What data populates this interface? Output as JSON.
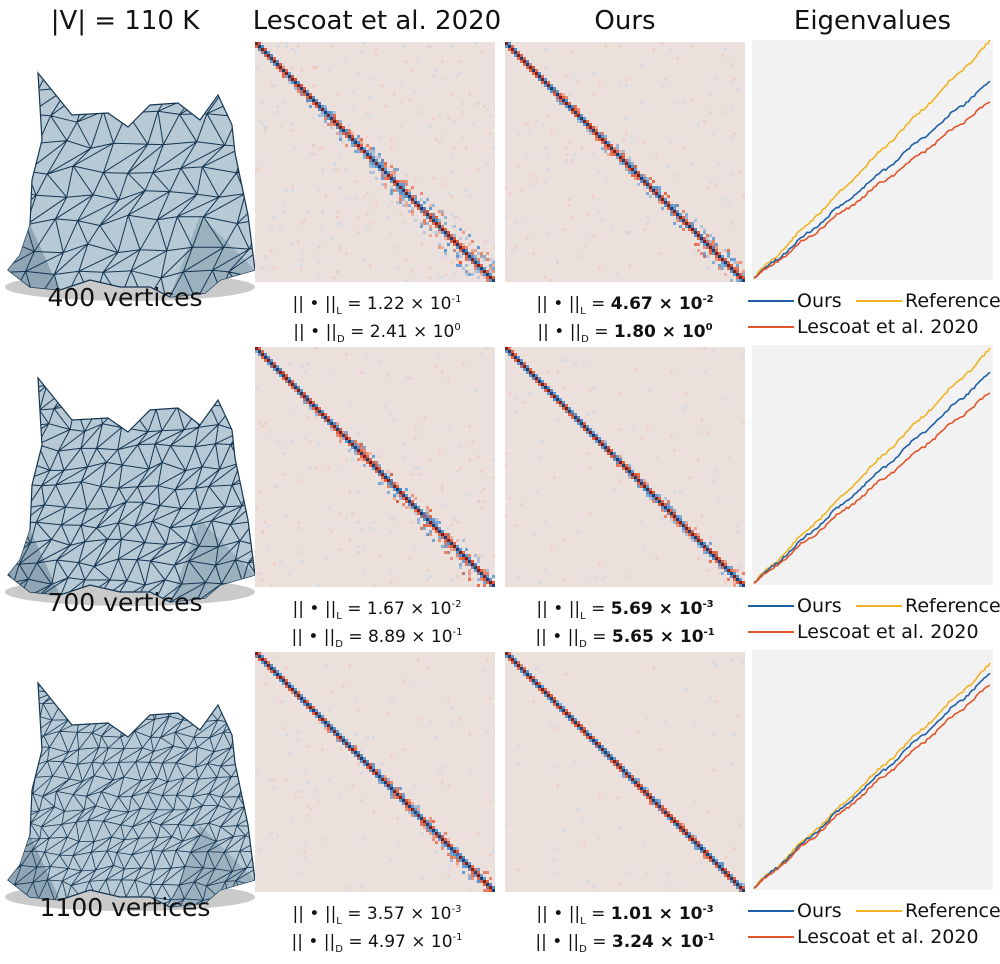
{
  "headers": {
    "col0": "|V| = 110 K",
    "col1": "Lescoat et al. 2020",
    "col2": "Ours",
    "col3": "Eigenvalues"
  },
  "colors": {
    "ours": "#1f5fa6",
    "reference": "#f0b323",
    "lescoat": "#e0552a",
    "mesh_fill": "#b7c9d4",
    "mesh_edge": "#143552",
    "matrix_bg": "#ece0dc"
  },
  "legend": {
    "ours": "Ours",
    "reference": "Reference",
    "lescoat": "Lescoat et al. 2020"
  },
  "rows": [
    {
      "vertices": "400 vertices",
      "lescoat_L": {
        "prefix": "|| • ||",
        "sub": "L",
        "eq": " = 1.22 × 10",
        "exp": "-1"
      },
      "lescoat_D": {
        "prefix": "|| • ||",
        "sub": "D",
        "eq": " = 2.41 × 10",
        "exp": "0"
      },
      "ours_L": {
        "prefix": "|| • ||",
        "sub": "L",
        "eq": " = ",
        "val": "4.67 × 10",
        "exp": "-2"
      },
      "ours_D": {
        "prefix": "|| • ||",
        "sub": "D",
        "eq": " = ",
        "val": "1.80 × 10",
        "exp": "0"
      }
    },
    {
      "vertices": "700 vertices",
      "lescoat_L": {
        "prefix": "|| • ||",
        "sub": "L",
        "eq": " = 1.67 × 10",
        "exp": "-2"
      },
      "lescoat_D": {
        "prefix": "|| • ||",
        "sub": "D",
        "eq": " = 8.89 × 10",
        "exp": "-1"
      },
      "ours_L": {
        "prefix": "|| • ||",
        "sub": "L",
        "eq": " = ",
        "val": "5.69 × 10",
        "exp": "-3"
      },
      "ours_D": {
        "prefix": "|| • ||",
        "sub": "D",
        "eq": " = ",
        "val": "5.65 × 10",
        "exp": "-1"
      }
    },
    {
      "vertices": "1100 vertices",
      "lescoat_L": {
        "prefix": "|| • ||",
        "sub": "L",
        "eq": " = 3.57 × 10",
        "exp": "-3"
      },
      "lescoat_D": {
        "prefix": "|| • ||",
        "sub": "D",
        "eq": " = 4.97 × 10",
        "exp": "-1"
      },
      "ours_L": {
        "prefix": "|| • ||",
        "sub": "L",
        "eq": " = ",
        "val": "1.01 × 10",
        "exp": "-3"
      },
      "ours_D": {
        "prefix": "|| • ||",
        "sub": "D",
        "eq": " = ",
        "val": "3.24 × 10",
        "exp": "-1"
      }
    }
  ]
}
